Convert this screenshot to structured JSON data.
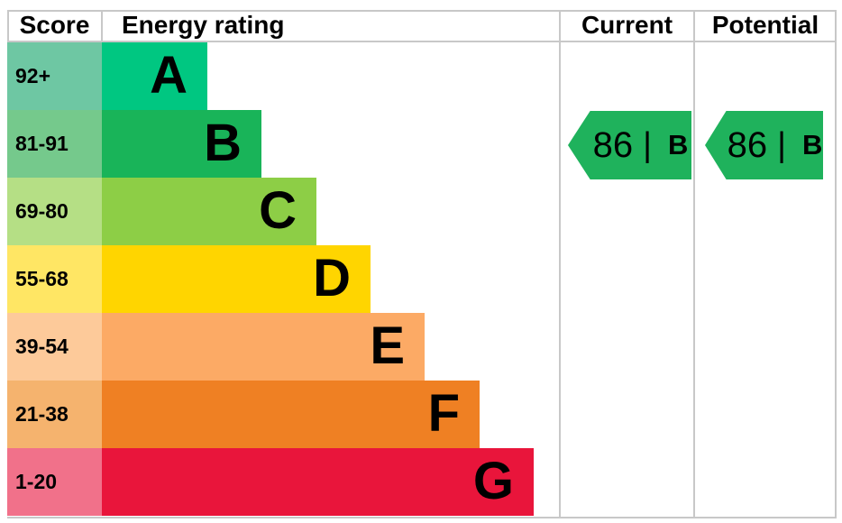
{
  "chart_data": {
    "type": "bar",
    "title": "Energy rating",
    "categories": [
      "A",
      "B",
      "C",
      "D",
      "E",
      "F",
      "G"
    ],
    "score_ranges": [
      "92+",
      "81-91",
      "69-80",
      "55-68",
      "39-54",
      "21-38",
      "1-20"
    ],
    "band_colors": [
      "#00c781",
      "#19b459",
      "#8dce46",
      "#ffd500",
      "#fcaa65",
      "#ef8023",
      "#e9153b"
    ],
    "current": {
      "score": 86,
      "band": "B"
    },
    "potential": {
      "score": 86,
      "band": "B"
    },
    "legend_position": "none",
    "grid": false
  },
  "header": {
    "score": "Score",
    "energy_rating": "Energy rating",
    "current": "Current",
    "potential": "Potential"
  },
  "bands": [
    {
      "score_range": "92+",
      "letter": "A",
      "bar_color": "#00c781",
      "score_cell_color": "#6ec7a3"
    },
    {
      "score_range": "81-91",
      "letter": "B",
      "bar_color": "#19b459",
      "score_cell_color": "#75c98c"
    },
    {
      "score_range": "69-80",
      "letter": "C",
      "bar_color": "#8dce46",
      "score_cell_color": "#b5df85"
    },
    {
      "score_range": "55-68",
      "letter": "D",
      "bar_color": "#ffd500",
      "score_cell_color": "#ffe664"
    },
    {
      "score_range": "39-54",
      "letter": "E",
      "bar_color": "#fcaa65",
      "score_cell_color": "#fdca9a"
    },
    {
      "score_range": "21-38",
      "letter": "F",
      "bar_color": "#ef8023",
      "score_cell_color": "#f5b36e"
    },
    {
      "score_range": "1-20",
      "letter": "G",
      "bar_color": "#e9153b",
      "score_cell_color": "#f1718a"
    }
  ],
  "current_marker": {
    "value": "86",
    "separator": "|",
    "band": "B",
    "color": "#1fb25c",
    "band_index": 1
  },
  "potential_marker": {
    "value": "86",
    "separator": "|",
    "band": "B",
    "color": "#1fb25c",
    "band_index": 1
  },
  "style_colors": {
    "border": "#c8c8c8",
    "text": "#000000",
    "background": "#ffffff"
  }
}
